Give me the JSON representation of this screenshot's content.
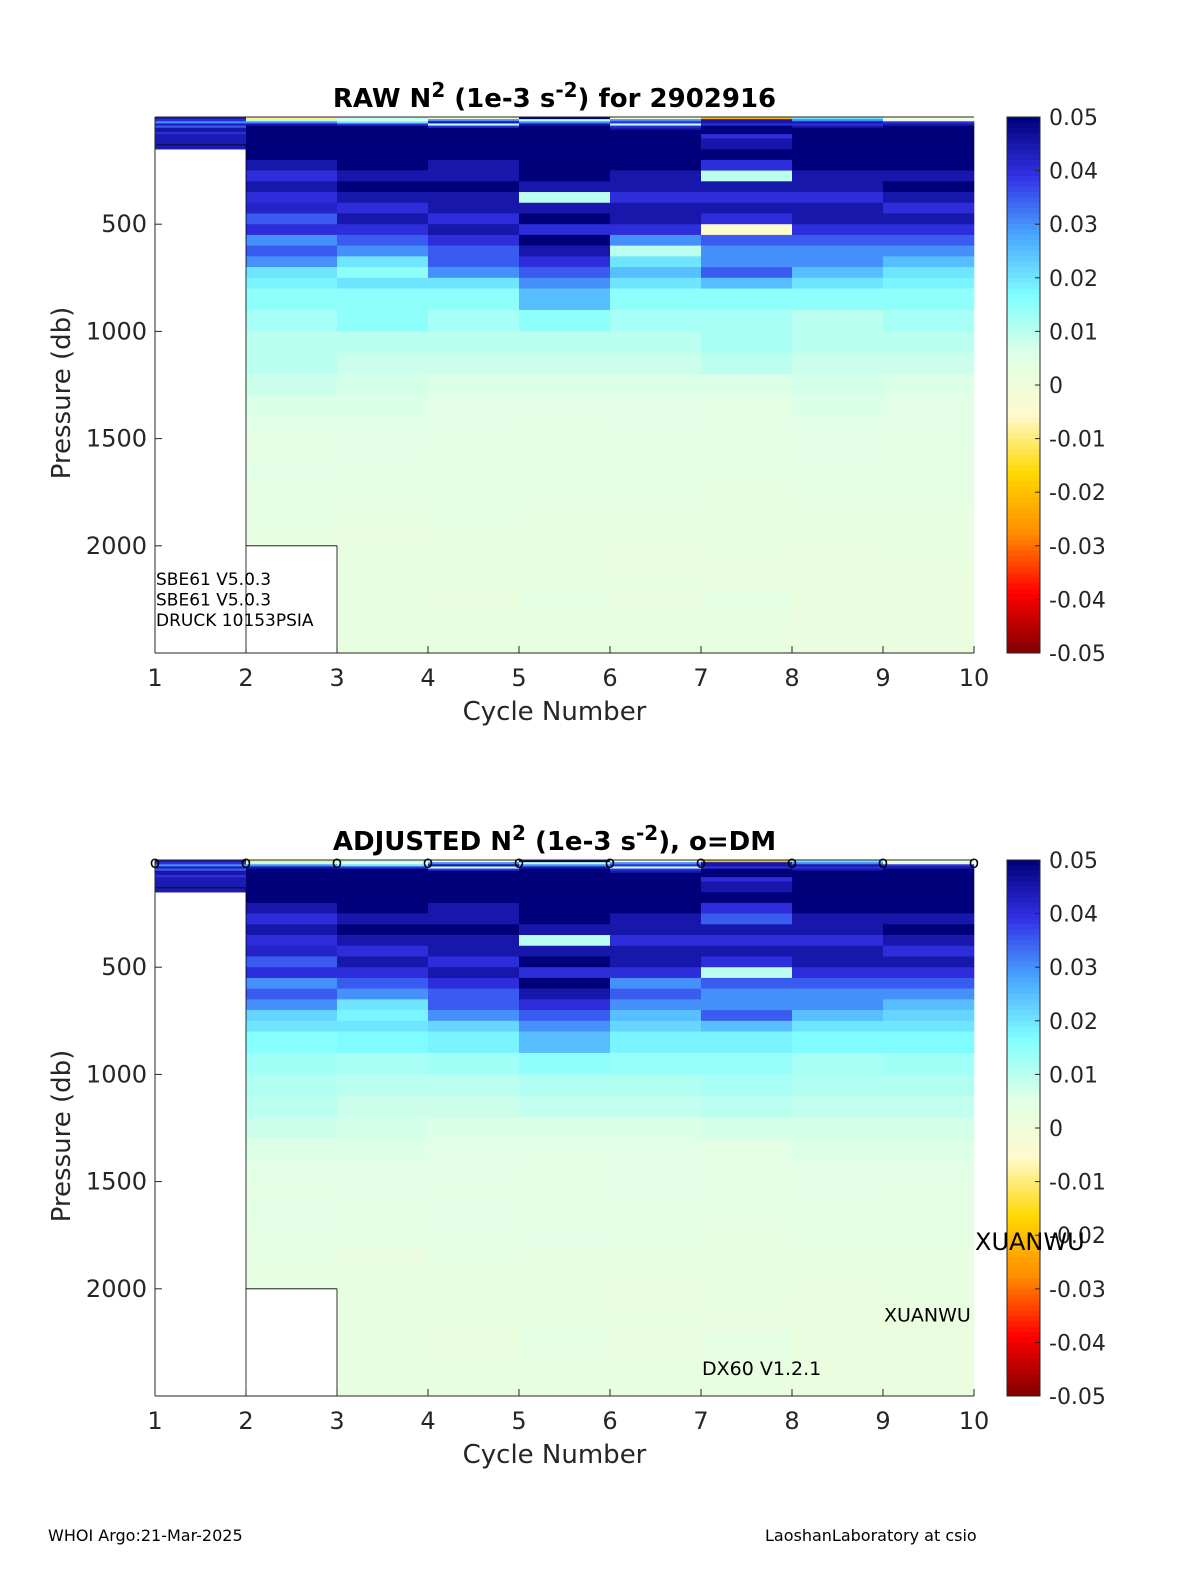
{
  "footer": {
    "left": "WHOI Argo:21-Mar-2025",
    "right": "LaoshanLaboratory at csio"
  },
  "colormap": {
    "stops": [
      "#800000",
      "#ff0000",
      "#ff8c00",
      "#ffd700",
      "#fffacd",
      "#e0ffe6",
      "#80ffff",
      "#4aa8ff",
      "#3232e6",
      "#00007a"
    ],
    "nan_color": "#ffffff"
  },
  "chart_data": [
    {
      "type": "heatmap",
      "title": {
        "main": "RAW N",
        "sup1": "2",
        "mid": " (1e-3 s",
        "sup2": "-2",
        "end": ") for 2902916"
      },
      "xlabel": "Cycle Number",
      "ylabel": "Pressure (db)",
      "xlim": [
        1,
        10
      ],
      "ylim": [
        2500,
        0
      ],
      "xticks": [
        "1",
        "2",
        "3",
        "4",
        "5",
        "6",
        "7",
        "8",
        "9",
        "10"
      ],
      "yticks": [
        "500",
        "1000",
        "1500",
        "2000"
      ],
      "yticks_values": [
        500,
        1000,
        1500,
        2000
      ],
      "clim": [
        -0.05,
        0.05
      ],
      "colorbar_ticks": [
        "0.05",
        "0.04",
        "0.03",
        "0.02",
        "0.01",
        "0",
        "-0.01",
        "-0.02",
        "-0.03",
        "-0.04",
        "-0.05"
      ],
      "colorbar_values": [
        0.05,
        0.04,
        0.03,
        0.02,
        0.01,
        0,
        -0.01,
        -0.02,
        -0.03,
        -0.04,
        -0.05
      ],
      "dm_markers": [],
      "profile_max_pressure": [
        130,
        2000,
        2500,
        2500,
        2500,
        2500,
        2500,
        2500,
        2500
      ],
      "depth_levels": [
        0,
        10,
        20,
        30,
        40,
        50,
        60,
        70,
        80,
        100,
        150,
        200,
        250,
        300,
        350,
        400,
        450,
        500,
        550,
        600,
        650,
        700,
        750,
        800,
        900,
        1000,
        1100,
        1200,
        1300,
        1400,
        1500,
        1600,
        1700,
        1800,
        1900,
        2000,
        2100,
        2200,
        2300,
        2400,
        2500
      ],
      "columns": [
        [
          0.045,
          0.04,
          0.03,
          0.044,
          0.035,
          0.045,
          0.045,
          0.04,
          0.044,
          0.044,
          null,
          null,
          null,
          null,
          null,
          null,
          null,
          null,
          null,
          null,
          null,
          null,
          null,
          null,
          null,
          null,
          null,
          null,
          null,
          null,
          null,
          null,
          null,
          null,
          null,
          null,
          null,
          null,
          null,
          null
        ],
        [
          -0.01,
          0.01,
          0.03,
          0.045,
          0.05,
          0.05,
          0.05,
          0.05,
          0.05,
          0.05,
          0.05,
          0.045,
          0.04,
          0.045,
          0.04,
          0.042,
          0.035,
          0.04,
          0.03,
          0.035,
          0.03,
          0.02,
          0.018,
          0.015,
          0.012,
          0.01,
          0.01,
          0.008,
          0.006,
          0.005,
          0.004,
          0.005,
          0.004,
          0.004,
          0.003,
          null,
          null,
          null,
          null,
          null
        ],
        [
          0.01,
          0.005,
          0.02,
          0.04,
          0.05,
          0.05,
          0.05,
          0.05,
          0.05,
          0.05,
          0.05,
          0.05,
          0.045,
          0.05,
          0.045,
          0.04,
          0.045,
          0.04,
          0.035,
          0.03,
          0.02,
          0.015,
          0.02,
          0.015,
          0.015,
          0.01,
          0.008,
          0.007,
          0.006,
          0.005,
          0.005,
          0.004,
          0.004,
          0.003,
          0.002,
          0.003,
          0.003,
          0.003,
          0.003,
          0.003
        ],
        [
          -0.005,
          0.03,
          0.045,
          0.01,
          0.04,
          0.05,
          0.05,
          0.05,
          0.05,
          0.05,
          0.05,
          0.045,
          0.045,
          0.05,
          0.045,
          0.045,
          0.04,
          0.045,
          0.04,
          0.035,
          0.035,
          0.03,
          0.02,
          0.015,
          0.012,
          0.01,
          0.008,
          0.006,
          0.005,
          0.005,
          0.004,
          0.004,
          0.004,
          0.004,
          0.003,
          0.003,
          0.003,
          0.002,
          0.003,
          0.003
        ],
        [
          0.05,
          0.01,
          0.03,
          0.045,
          0.05,
          0.05,
          0.05,
          0.05,
          0.05,
          0.05,
          0.05,
          0.05,
          0.05,
          0.045,
          0.01,
          0.045,
          0.05,
          0.04,
          0.05,
          0.045,
          0.04,
          0.035,
          0.03,
          0.025,
          0.015,
          0.01,
          0.008,
          0.006,
          0.005,
          0.004,
          0.004,
          0.004,
          0.004,
          0.003,
          0.003,
          0.003,
          0.003,
          0.004,
          0.003,
          0.003
        ],
        [
          -0.005,
          0.03,
          0.04,
          0.01,
          0.04,
          0.045,
          0.05,
          0.05,
          0.05,
          0.05,
          0.05,
          0.05,
          0.045,
          0.045,
          0.04,
          0.045,
          0.045,
          0.04,
          0.03,
          0.01,
          0.02,
          0.025,
          0.02,
          0.015,
          0.012,
          0.01,
          0.008,
          0.006,
          0.005,
          0.005,
          0.004,
          0.004,
          0.004,
          0.003,
          0.003,
          0.002,
          0.003,
          0.002,
          0.003,
          0.003
        ],
        [
          -0.02,
          0.045,
          0.045,
          0.04,
          0.05,
          0.05,
          0.05,
          0.05,
          0.04,
          0.045,
          0.05,
          0.04,
          0.01,
          0.045,
          0.04,
          0.045,
          0.04,
          -0.005,
          0.035,
          0.03,
          0.03,
          0.035,
          0.025,
          0.015,
          0.012,
          0.012,
          0.01,
          0.006,
          0.004,
          0.004,
          0.004,
          0.004,
          0.003,
          0.003,
          0.003,
          0.003,
          0.002,
          0.004,
          0.003,
          0.003
        ],
        [
          0.02,
          0.03,
          0.045,
          0.04,
          0.045,
          0.05,
          0.05,
          0.05,
          0.05,
          0.05,
          0.05,
          0.05,
          0.045,
          0.045,
          0.04,
          0.045,
          0.045,
          0.04,
          0.035,
          0.03,
          0.03,
          0.025,
          0.02,
          0.015,
          0.01,
          0.01,
          0.008,
          0.007,
          0.006,
          0.005,
          0.005,
          0.004,
          0.004,
          0.003,
          0.003,
          0.002,
          0.002,
          0.002,
          0.002,
          0.002
        ],
        [
          0.0,
          0.005,
          0.04,
          0.045,
          0.05,
          0.05,
          0.05,
          0.05,
          0.05,
          0.05,
          0.05,
          0.05,
          0.045,
          0.05,
          0.045,
          0.04,
          0.045,
          0.04,
          0.035,
          0.03,
          0.025,
          0.02,
          0.018,
          0.015,
          0.012,
          0.01,
          0.008,
          0.006,
          0.005,
          0.005,
          0.004,
          0.004,
          0.004,
          0.003,
          0.003,
          0.003,
          0.002,
          0.002,
          0.002,
          0.002
        ]
      ],
      "annotations": [
        {
          "text": "SBE61 V5.0.3",
          "x": 1.0,
          "y": 2155
        },
        {
          "text": "SBE61 V5.0.3",
          "x": 1.0,
          "y": 2250
        },
        {
          "text": "DRUCK 10153PSIA",
          "x": 1.0,
          "y": 2345
        }
      ],
      "side_annotations": []
    },
    {
      "type": "heatmap",
      "title": {
        "main": "ADJUSTED N",
        "sup1": "2",
        "mid": " (1e-3 s",
        "sup2": "-2",
        "end": "), o=DM"
      },
      "xlabel": "Cycle Number",
      "ylabel": "Pressure (db)",
      "xlim": [
        1,
        10
      ],
      "ylim": [
        2500,
        0
      ],
      "xticks": [
        "1",
        "2",
        "3",
        "4",
        "5",
        "6",
        "7",
        "8",
        "9",
        "10"
      ],
      "yticks": [
        "500",
        "1000",
        "1500",
        "2000"
      ],
      "yticks_values": [
        500,
        1000,
        1500,
        2000
      ],
      "clim": [
        -0.05,
        0.05
      ],
      "colorbar_ticks": [
        "0.05",
        "0.04",
        "0.03",
        "0.02",
        "0.01",
        "0",
        "-0.01",
        "-0.02",
        "-0.03",
        "-0.04",
        "-0.05"
      ],
      "colorbar_values": [
        0.05,
        0.04,
        0.03,
        0.02,
        0.01,
        0,
        -0.01,
        -0.02,
        -0.03,
        -0.04,
        -0.05
      ],
      "dm_markers": [
        1,
        2,
        3,
        4,
        5,
        6,
        7,
        8,
        9,
        10
      ],
      "dm_marker_glyph": "o",
      "profile_max_pressure": [
        130,
        2000,
        2500,
        2500,
        2500,
        2500,
        2500,
        2500,
        2500
      ],
      "depth_levels": [
        0,
        10,
        20,
        30,
        40,
        50,
        60,
        70,
        80,
        100,
        150,
        200,
        250,
        300,
        350,
        400,
        450,
        500,
        550,
        600,
        650,
        700,
        750,
        800,
        900,
        1000,
        1100,
        1200,
        1300,
        1400,
        1500,
        1600,
        1700,
        1800,
        1900,
        2000,
        2100,
        2200,
        2300,
        2400,
        2500
      ],
      "columns": [
        [
          0.045,
          0.04,
          0.03,
          0.044,
          0.035,
          0.045,
          0.045,
          0.04,
          0.044,
          0.044,
          null,
          null,
          null,
          null,
          null,
          null,
          null,
          null,
          null,
          null,
          null,
          null,
          null,
          null,
          null,
          null,
          null,
          null,
          null,
          null,
          null,
          null,
          null,
          null,
          null,
          null,
          null,
          null,
          null,
          null
        ],
        [
          -0.01,
          0.01,
          0.03,
          0.045,
          0.05,
          0.05,
          0.05,
          0.05,
          0.05,
          0.05,
          0.05,
          0.045,
          0.04,
          0.045,
          0.04,
          0.042,
          0.035,
          0.04,
          0.03,
          0.035,
          0.03,
          0.022,
          0.02,
          0.016,
          0.013,
          0.011,
          0.01,
          0.008,
          0.006,
          0.005,
          0.004,
          0.005,
          0.004,
          0.004,
          0.003,
          null,
          null,
          null,
          null,
          null
        ],
        [
          0.01,
          0.005,
          0.02,
          0.04,
          0.05,
          0.05,
          0.05,
          0.05,
          0.05,
          0.05,
          0.05,
          0.05,
          0.045,
          0.05,
          0.045,
          0.04,
          0.045,
          0.04,
          0.035,
          0.03,
          0.02,
          0.018,
          0.02,
          0.017,
          0.012,
          0.01,
          0.008,
          0.007,
          0.006,
          0.005,
          0.005,
          0.004,
          0.004,
          0.002,
          0.003,
          0.003,
          0.003,
          0.003,
          0.003,
          0.003
        ],
        [
          -0.005,
          0.03,
          0.045,
          0.01,
          0.04,
          0.05,
          0.05,
          0.05,
          0.05,
          0.05,
          0.05,
          0.045,
          0.045,
          0.05,
          0.045,
          0.045,
          0.04,
          0.045,
          0.04,
          0.035,
          0.035,
          0.03,
          0.022,
          0.018,
          0.013,
          0.01,
          0.008,
          0.006,
          0.005,
          0.005,
          0.004,
          0.005,
          0.004,
          0.004,
          0.003,
          0.003,
          0.003,
          0.002,
          0.003,
          0.003
        ],
        [
          0.05,
          0.01,
          0.03,
          0.045,
          0.05,
          0.05,
          0.05,
          0.05,
          0.05,
          0.05,
          0.05,
          0.05,
          0.05,
          0.045,
          0.01,
          0.045,
          0.05,
          0.04,
          0.05,
          0.045,
          0.04,
          0.035,
          0.03,
          0.025,
          0.015,
          0.011,
          0.009,
          0.006,
          0.005,
          0.004,
          0.004,
          0.004,
          0.005,
          0.003,
          0.003,
          0.003,
          0.003,
          0.004,
          0.003,
          0.003
        ],
        [
          -0.005,
          0.03,
          0.04,
          0.01,
          0.04,
          0.045,
          0.05,
          0.05,
          0.05,
          0.05,
          0.05,
          0.05,
          0.045,
          0.045,
          0.04,
          0.045,
          0.045,
          0.04,
          0.03,
          0.035,
          0.03,
          0.025,
          0.022,
          0.018,
          0.014,
          0.011,
          0.009,
          0.006,
          0.005,
          0.005,
          0.005,
          0.004,
          0.004,
          0.003,
          0.003,
          0.002,
          0.003,
          0.002,
          0.003,
          0.003
        ],
        [
          -0.02,
          0.045,
          0.045,
          0.04,
          0.05,
          0.05,
          0.05,
          0.05,
          0.04,
          0.045,
          0.05,
          0.04,
          0.035,
          0.045,
          0.04,
          0.045,
          0.04,
          0.01,
          0.035,
          0.03,
          0.03,
          0.035,
          0.025,
          0.018,
          0.014,
          0.012,
          0.01,
          0.007,
          0.005,
          0.004,
          0.004,
          0.004,
          0.003,
          0.003,
          0.003,
          0.003,
          0.002,
          0.004,
          0.003,
          0.003
        ],
        [
          0.02,
          0.03,
          0.045,
          0.04,
          0.045,
          0.05,
          0.05,
          0.05,
          0.05,
          0.05,
          0.05,
          0.05,
          0.045,
          0.045,
          0.04,
          0.045,
          0.045,
          0.04,
          0.035,
          0.03,
          0.03,
          0.025,
          0.02,
          0.017,
          0.012,
          0.011,
          0.009,
          0.007,
          0.006,
          0.005,
          0.005,
          0.004,
          0.004,
          0.003,
          0.003,
          0.002,
          0.002,
          0.002,
          0.002,
          0.002
        ],
        [
          0.0,
          0.005,
          0.04,
          0.045,
          0.05,
          0.05,
          0.05,
          0.05,
          0.05,
          0.05,
          0.05,
          0.05,
          0.045,
          0.05,
          0.045,
          0.04,
          0.045,
          0.04,
          0.035,
          0.03,
          0.025,
          0.022,
          0.02,
          0.017,
          0.013,
          0.011,
          0.009,
          0.007,
          0.006,
          0.005,
          0.004,
          0.004,
          0.004,
          0.003,
          0.003,
          0.003,
          0.002,
          0.002,
          0.002,
          0.002
        ]
      ],
      "annotations": [
        {
          "text": "XUANWU",
          "x": 9.0,
          "y": 2125
        },
        {
          "text": "DX60 V1.2.1",
          "x": 7.0,
          "y": 2375
        }
      ],
      "side_annotations": [
        {
          "text": "XUANWU"
        }
      ]
    }
  ]
}
